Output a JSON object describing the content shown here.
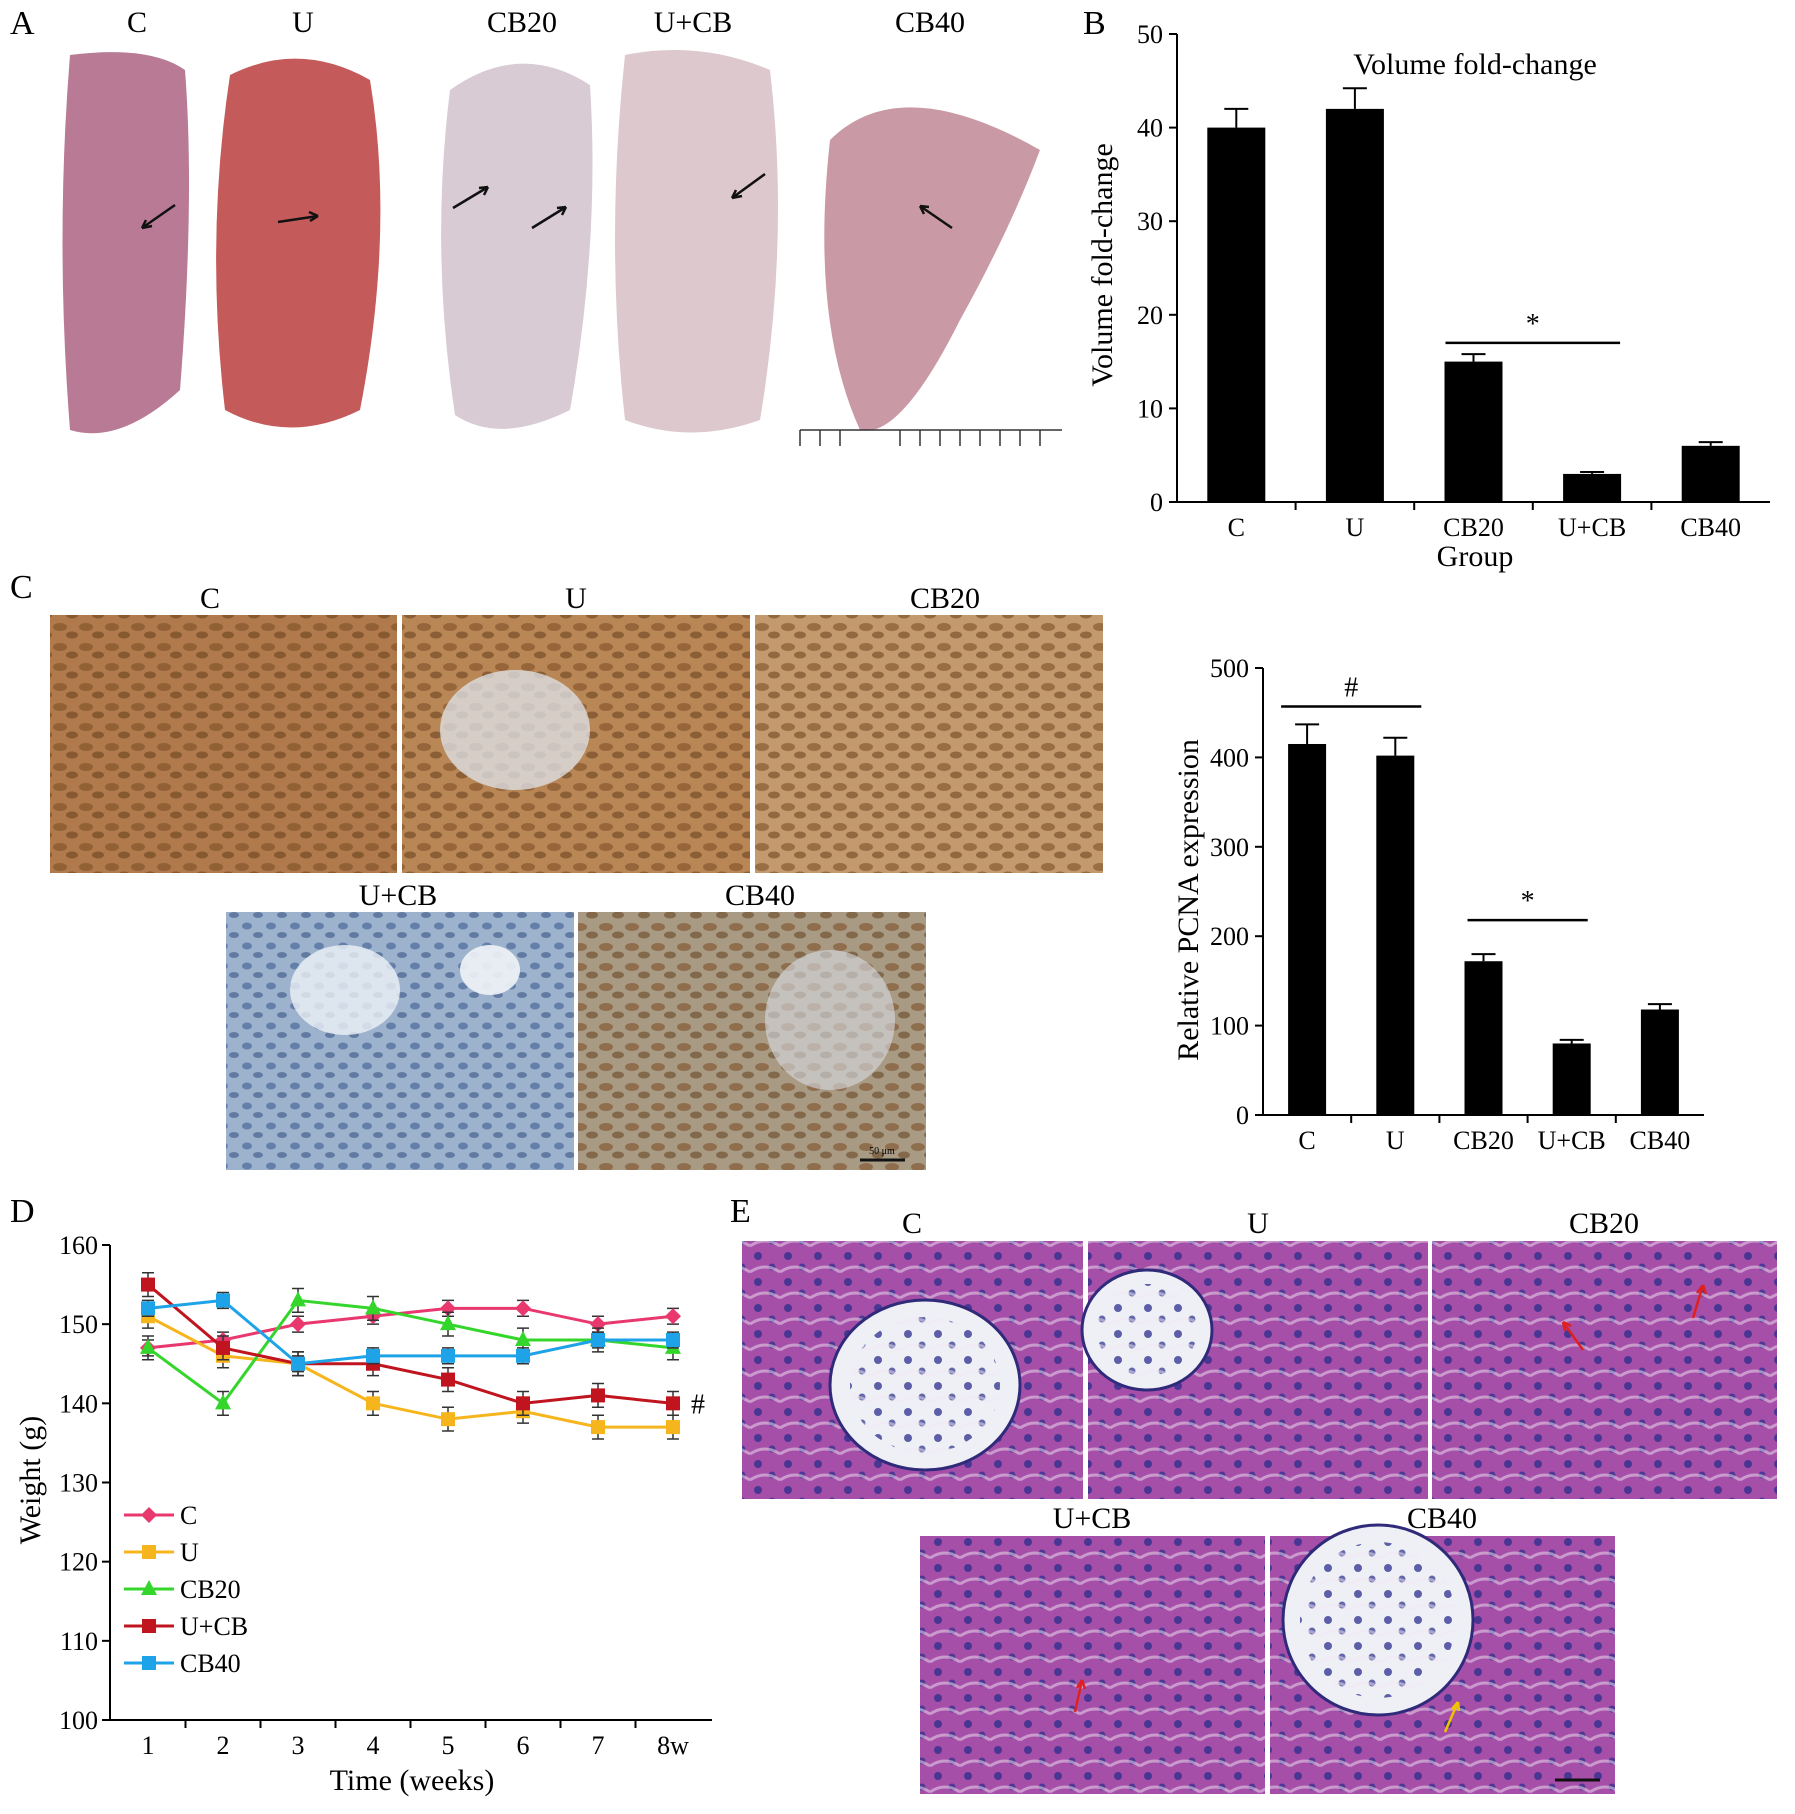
{
  "panel_letters": [
    "A",
    "B",
    "C",
    "D",
    "E"
  ],
  "photo_panel": {
    "labels": [
      "C",
      "U",
      "CB20",
      "U+CB",
      "CB40"
    ],
    "tints": [
      "#b87a95",
      "#c45a5a",
      "#d8cbd3",
      "#dcc8cd",
      "#c99aa6"
    ]
  },
  "ihc_panel": {
    "labels": [
      "C",
      "U",
      "CB20",
      "U+CB",
      "CB40"
    ],
    "tints": [
      "#b07a4c",
      "#b98656",
      "#c29a6d",
      "#9db2cc",
      "#a99a83"
    ],
    "scale_text": "50 μm"
  },
  "he_panel": {
    "labels": [
      "C",
      "U",
      "CB20",
      "U+CB",
      "CB40"
    ],
    "tint": "#a54fa8"
  },
  "chart_data": [
    {
      "id": "B",
      "type": "bar",
      "title": "Volume fold-change",
      "xlabel": "Group",
      "ylabel": "Volume fold-change",
      "categories": [
        "C",
        "U",
        "CB20",
        "U+CB",
        "CB40"
      ],
      "values": [
        40,
        42,
        15,
        3,
        6
      ],
      "errors": [
        2,
        2.2,
        0.8,
        0.2,
        0.4
      ],
      "ylim": [
        0,
        50
      ],
      "yticks": [
        0,
        10,
        20,
        30,
        40,
        50
      ],
      "significance": {
        "symbol": "*",
        "between": [
          "CB20",
          "U+CB"
        ]
      }
    },
    {
      "id": "C",
      "type": "bar",
      "title": "",
      "xlabel": "",
      "ylabel": "Relative PCNA expression",
      "categories": [
        "C",
        "U",
        "CB20",
        "U+CB",
        "CB40"
      ],
      "values": [
        415,
        402,
        172,
        80,
        118
      ],
      "errors": [
        22,
        20,
        8,
        4,
        6
      ],
      "ylim": [
        0,
        500
      ],
      "yticks": [
        0,
        100,
        200,
        300,
        400,
        500
      ],
      "significance": [
        {
          "symbol": "#",
          "between": [
            "C",
            "U"
          ]
        },
        {
          "symbol": "*",
          "between": [
            "CB20",
            "U+CB"
          ]
        }
      ]
    },
    {
      "id": "D",
      "type": "line",
      "xlabel": "Time (weeks)",
      "ylabel": "Weight (g)",
      "x": [
        "1",
        "2",
        "3",
        "4",
        "5",
        "6",
        "7",
        "8w"
      ],
      "ylim": [
        100,
        160
      ],
      "yticks": [
        100,
        110,
        120,
        130,
        140,
        150,
        160
      ],
      "legend_position": "bottom-left",
      "end_annotation": "#",
      "series": [
        {
          "name": "C",
          "color": "#e8386e",
          "marker": "diamond",
          "values": [
            147,
            148,
            150,
            151,
            152,
            152,
            150,
            151
          ],
          "error": 1
        },
        {
          "name": "U",
          "color": "#f7b51d",
          "marker": "square",
          "values": [
            151,
            146,
            145,
            140,
            138,
            139,
            137,
            137
          ],
          "error": 1.5
        },
        {
          "name": "CB20",
          "color": "#35d62c",
          "marker": "triangle",
          "values": [
            147,
            140,
            153,
            152,
            150,
            148,
            148,
            147
          ],
          "error": 1.5
        },
        {
          "name": "U+CB",
          "color": "#c0141e",
          "marker": "square",
          "values": [
            155,
            147,
            145,
            145,
            143,
            140,
            141,
            140
          ],
          "error": 1.5
        },
        {
          "name": "CB40",
          "color": "#1ea3e8",
          "marker": "square",
          "values": [
            152,
            153,
            145,
            146,
            146,
            146,
            148,
            148
          ],
          "error": 1
        }
      ]
    }
  ]
}
